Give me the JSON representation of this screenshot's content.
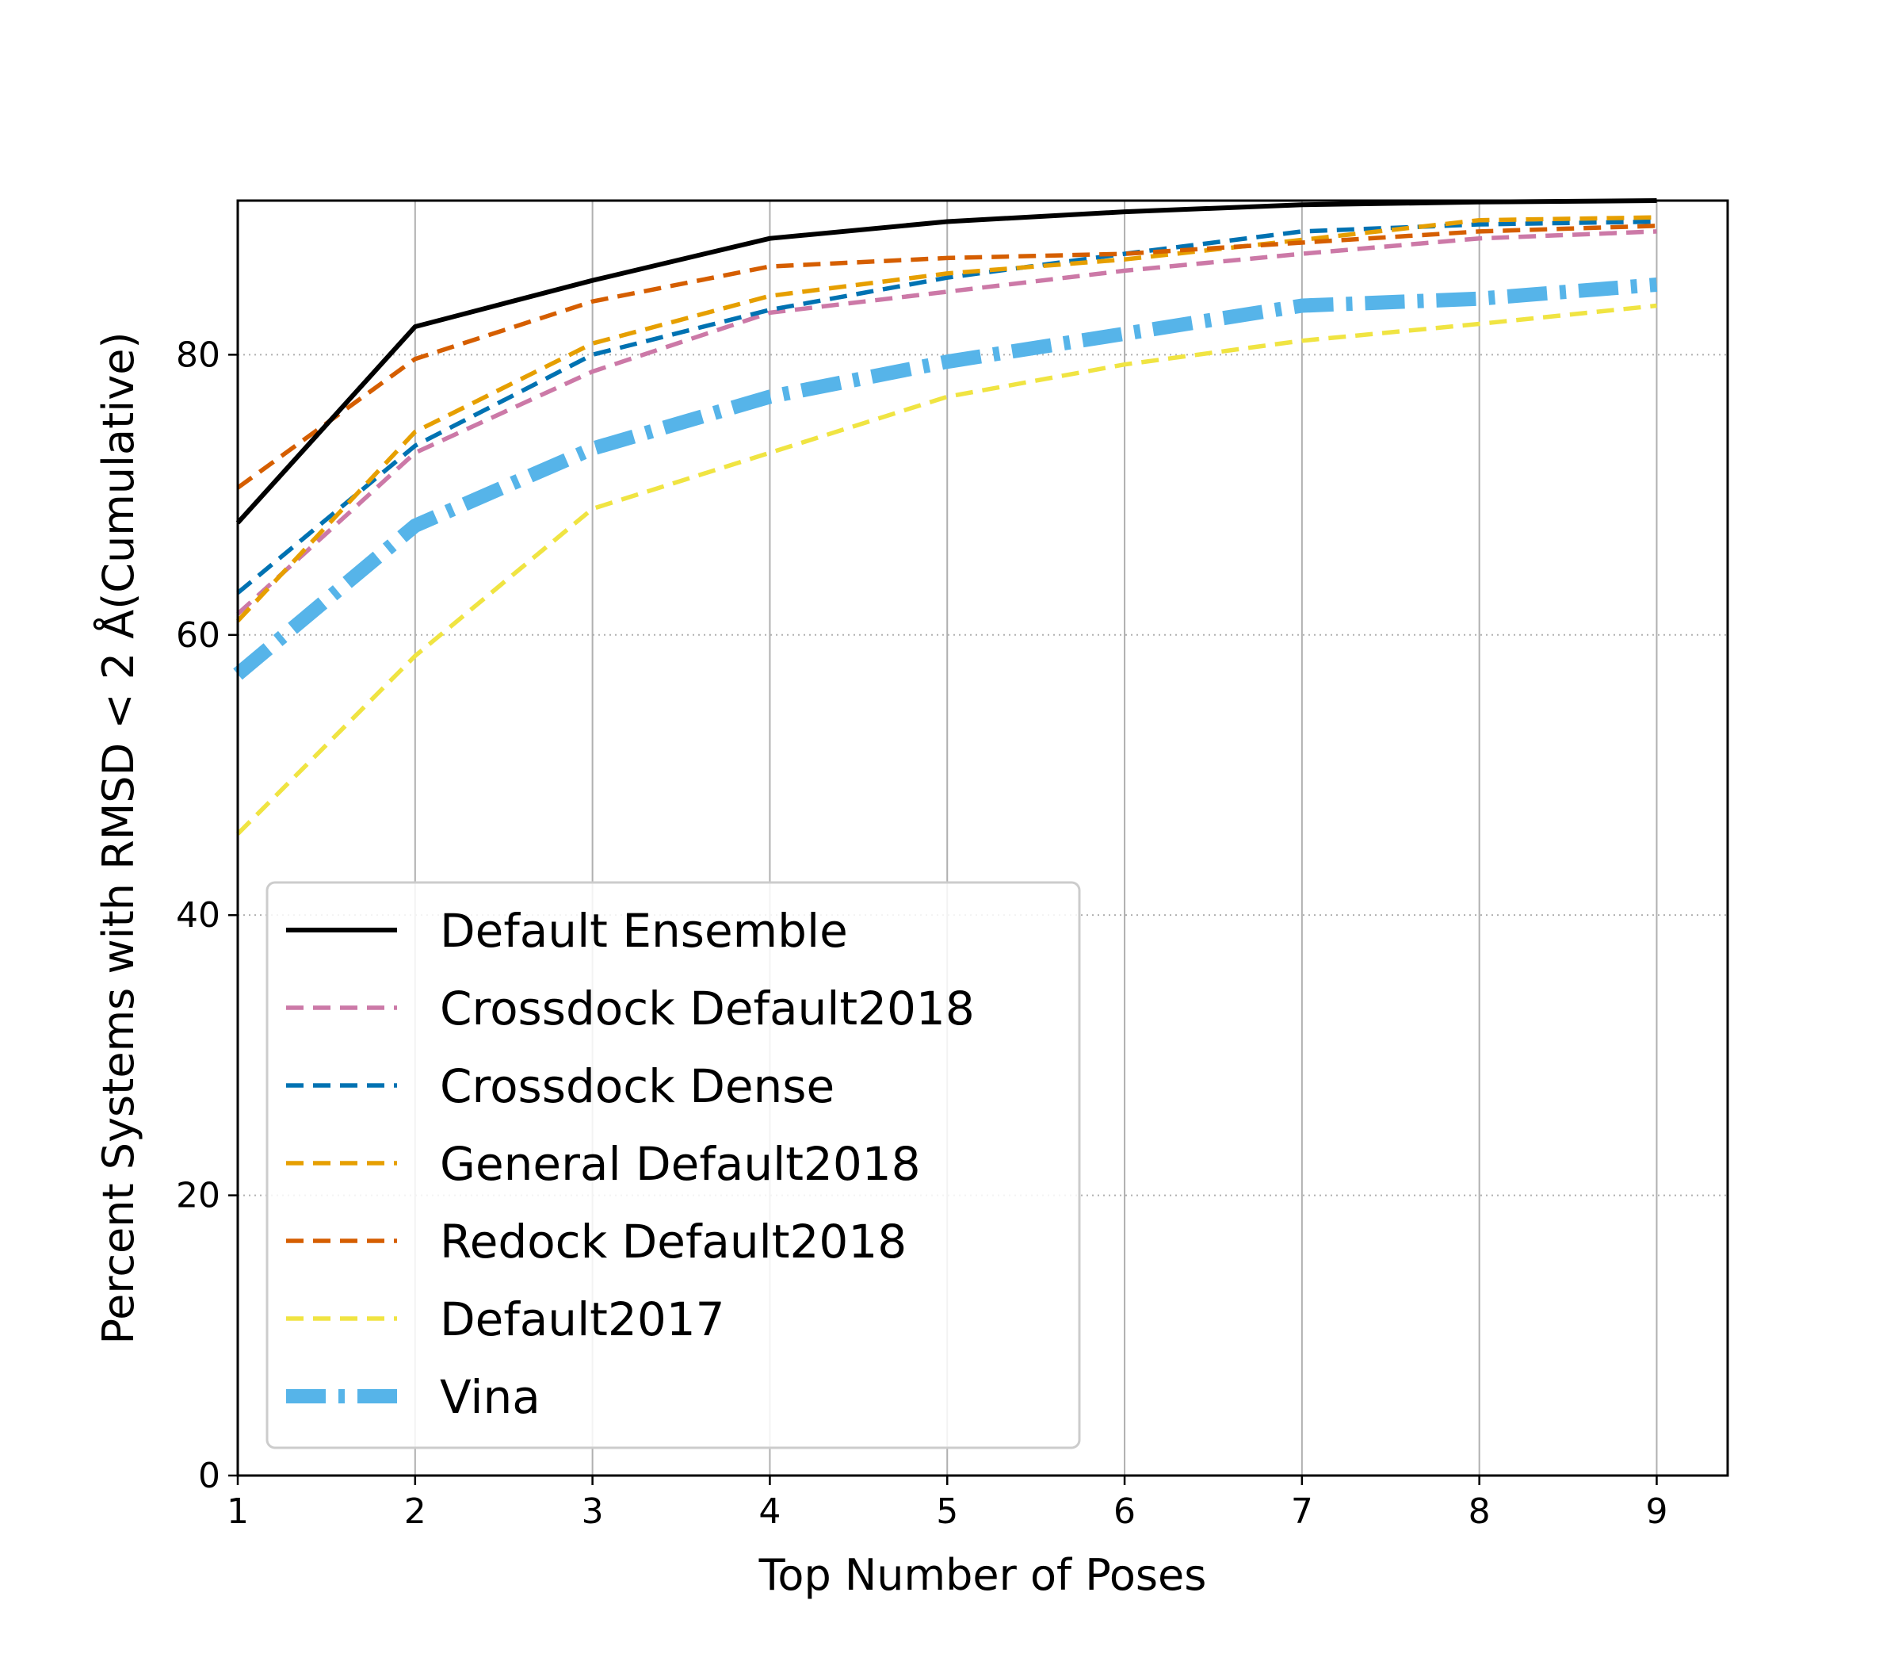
{
  "chart_data": {
    "type": "line",
    "title": "",
    "xlabel": "Top Number of Poses",
    "ylabel": "Percent Systems with RMSD < 2 Å(Cumulative)",
    "xlim": [
      1,
      9.4
    ],
    "ylim": [
      0,
      91
    ],
    "x_ticks": [
      "1",
      "2",
      "3",
      "4",
      "5",
      "6",
      "7",
      "8",
      "9"
    ],
    "y_ticks": [
      "0",
      "20",
      "40",
      "60",
      "80"
    ],
    "grid": {
      "x": "solid",
      "y": "dotted"
    },
    "legend_position": "lower-left",
    "x": [
      1,
      2,
      3,
      4,
      5,
      6,
      7,
      8,
      9
    ],
    "series": [
      {
        "name": "Default Ensemble",
        "color": "#000000",
        "style": "solid",
        "values": [
          68.0,
          82.0,
          85.3,
          88.3,
          89.5,
          90.2,
          90.7,
          90.9,
          91.0
        ]
      },
      {
        "name": "Crossdock Default2018",
        "color": "#cc79a7",
        "style": "dashed",
        "values": [
          61.5,
          73.0,
          78.8,
          83.0,
          84.5,
          86.0,
          87.2,
          88.3,
          88.8
        ]
      },
      {
        "name": "Crossdock Dense",
        "color": "#0072b2",
        "style": "dashed",
        "values": [
          63.0,
          73.5,
          80.0,
          83.2,
          85.5,
          87.2,
          88.8,
          89.3,
          89.5
        ]
      },
      {
        "name": "General Default2018",
        "color": "#e69f00",
        "style": "dashed",
        "values": [
          61.0,
          74.5,
          80.8,
          84.2,
          85.8,
          86.8,
          88.2,
          89.6,
          89.8
        ]
      },
      {
        "name": "Redock Default2018",
        "color": "#d55e00",
        "style": "dashed",
        "values": [
          70.5,
          79.7,
          83.8,
          86.3,
          86.9,
          87.2,
          88.0,
          88.8,
          89.2
        ]
      },
      {
        "name": "Default2017",
        "color": "#f0e442",
        "style": "dashed",
        "values": [
          45.8,
          58.5,
          69.0,
          73.0,
          77.0,
          79.3,
          81.0,
          82.2,
          83.5
        ]
      },
      {
        "name": "Vina",
        "color": "#56b4e9",
        "style": "dashdot-thick",
        "values": [
          57.2,
          67.8,
          73.3,
          77.0,
          79.5,
          81.5,
          83.5,
          84.0,
          85.0
        ]
      }
    ]
  }
}
